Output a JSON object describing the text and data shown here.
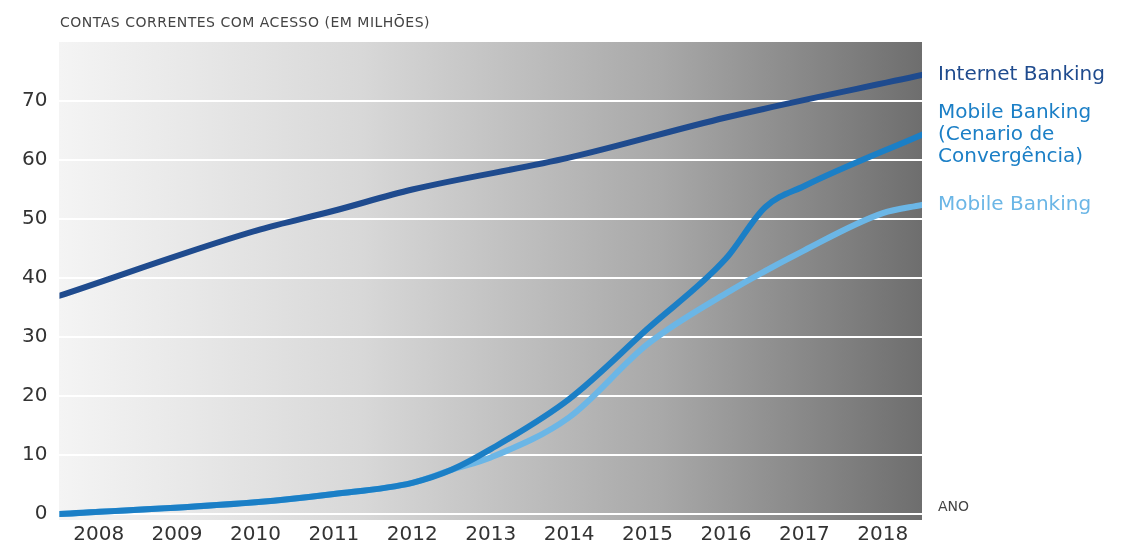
{
  "chart_data": {
    "type": "line",
    "ylabel": "CONTAS CORRENTES COM ACESSO (EM MILHÕES)",
    "xlabel": "ANO",
    "xlim": [
      2007.5,
      2018.5
    ],
    "xticks": [
      2008,
      2009,
      2010,
      2011,
      2012,
      2013,
      2014,
      2015,
      2016,
      2017,
      2018
    ],
    "ylim": [
      -1,
      80
    ],
    "yticks": [
      0,
      10,
      20,
      30,
      40,
      50,
      60,
      70
    ],
    "grid": "y",
    "legend": false,
    "marker": "none",
    "line_style": "solid",
    "series": [
      {
        "name": "Internet Banking",
        "color": "#1f4b8e",
        "x": [
          2007.5,
          2010,
          2011,
          2012,
          2014,
          2016,
          2018.5
        ],
        "values": [
          37,
          48,
          51.4,
          55,
          60.4,
          67.2,
          74.4
        ]
      },
      {
        "name": "Mobile Banking (Cenario de Convergência)",
        "color": "#1b7fc6",
        "x": [
          2007.5,
          2010,
          2011,
          2012,
          2012.5,
          2013,
          2014,
          2015,
          2016,
          2016.5,
          2017,
          2018.5
        ],
        "values": [
          0,
          2,
          3.4,
          5.3,
          7.5,
          11,
          19.5,
          31.4,
          43.3,
          52,
          55.6,
          64.3
        ]
      },
      {
        "name": "Mobile Banking",
        "color": "#6bb6e6",
        "x": [
          2007.5,
          2010,
          2011,
          2012,
          2012.5,
          2013,
          2014,
          2015,
          2016,
          2017,
          2018,
          2018.5
        ],
        "values": [
          0,
          2,
          3.4,
          5.3,
          7.5,
          9.6,
          16.4,
          28.8,
          37.4,
          44.7,
          51,
          52.4
        ]
      }
    ]
  }
}
